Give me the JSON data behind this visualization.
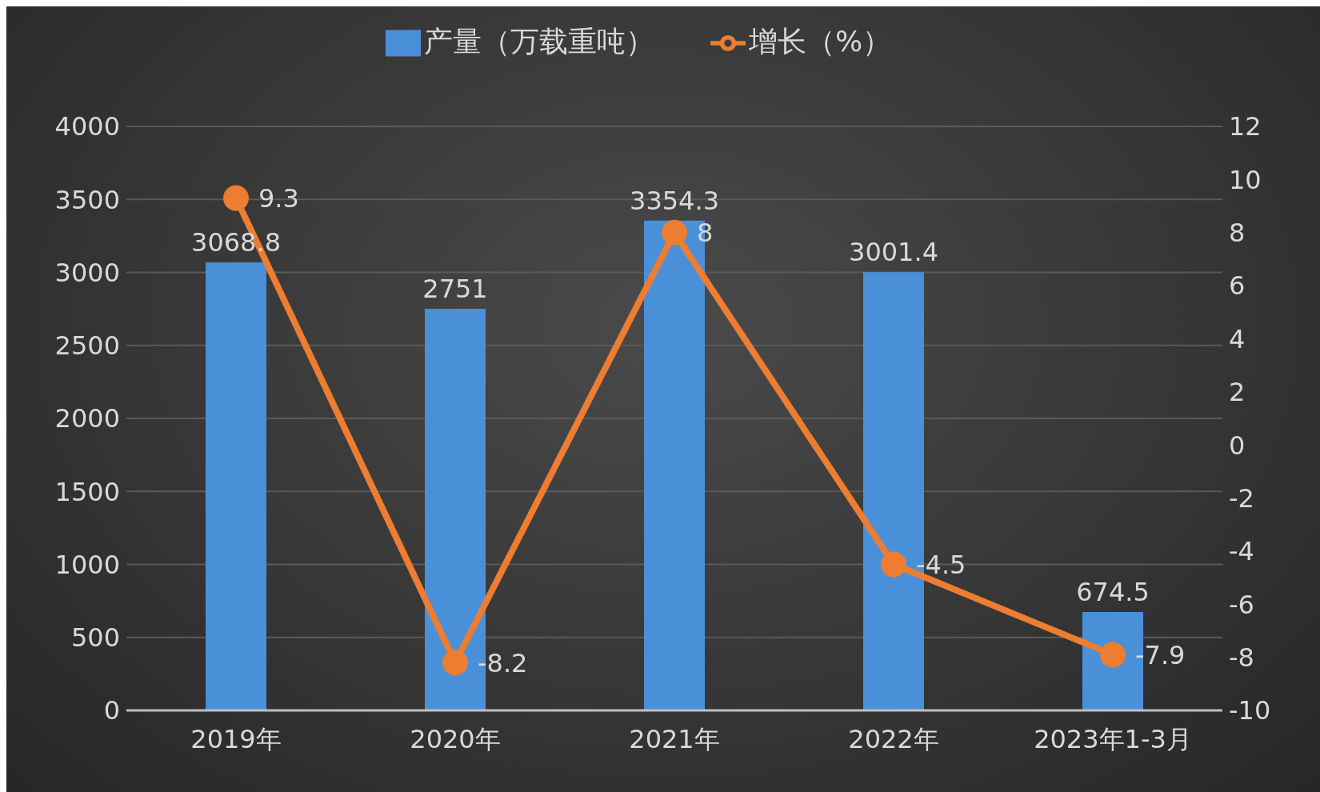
{
  "chart_data": {
    "type": "bar",
    "categories": [
      "2019年",
      "2020年",
      "2021年",
      "2022年",
      "2023年1-3月"
    ],
    "series": [
      {
        "name": "产量（万载重吨）",
        "color": "#4a90d9",
        "values": [
          3068.8,
          2751,
          3354.3,
          3001.4,
          674.5
        ]
      },
      {
        "name": "增长（%）",
        "type": "line",
        "axis": "y2",
        "color": "#ed7d31",
        "values": [
          9.3,
          -8.2,
          8,
          -4.5,
          -7.9
        ]
      }
    ],
    "ylim": [
      0,
      4000
    ],
    "yticks": [
      0,
      500,
      1000,
      1500,
      2000,
      2500,
      3000,
      3500,
      4000
    ],
    "y2lim": [
      -10,
      12
    ],
    "y2ticks": [
      -10,
      -8,
      -6,
      -4,
      -2,
      0,
      2,
      4,
      6,
      8,
      10,
      12
    ],
    "grid": "y",
    "legend": "top",
    "marker": "circle",
    "line_style": "solid",
    "data_labels": true
  }
}
